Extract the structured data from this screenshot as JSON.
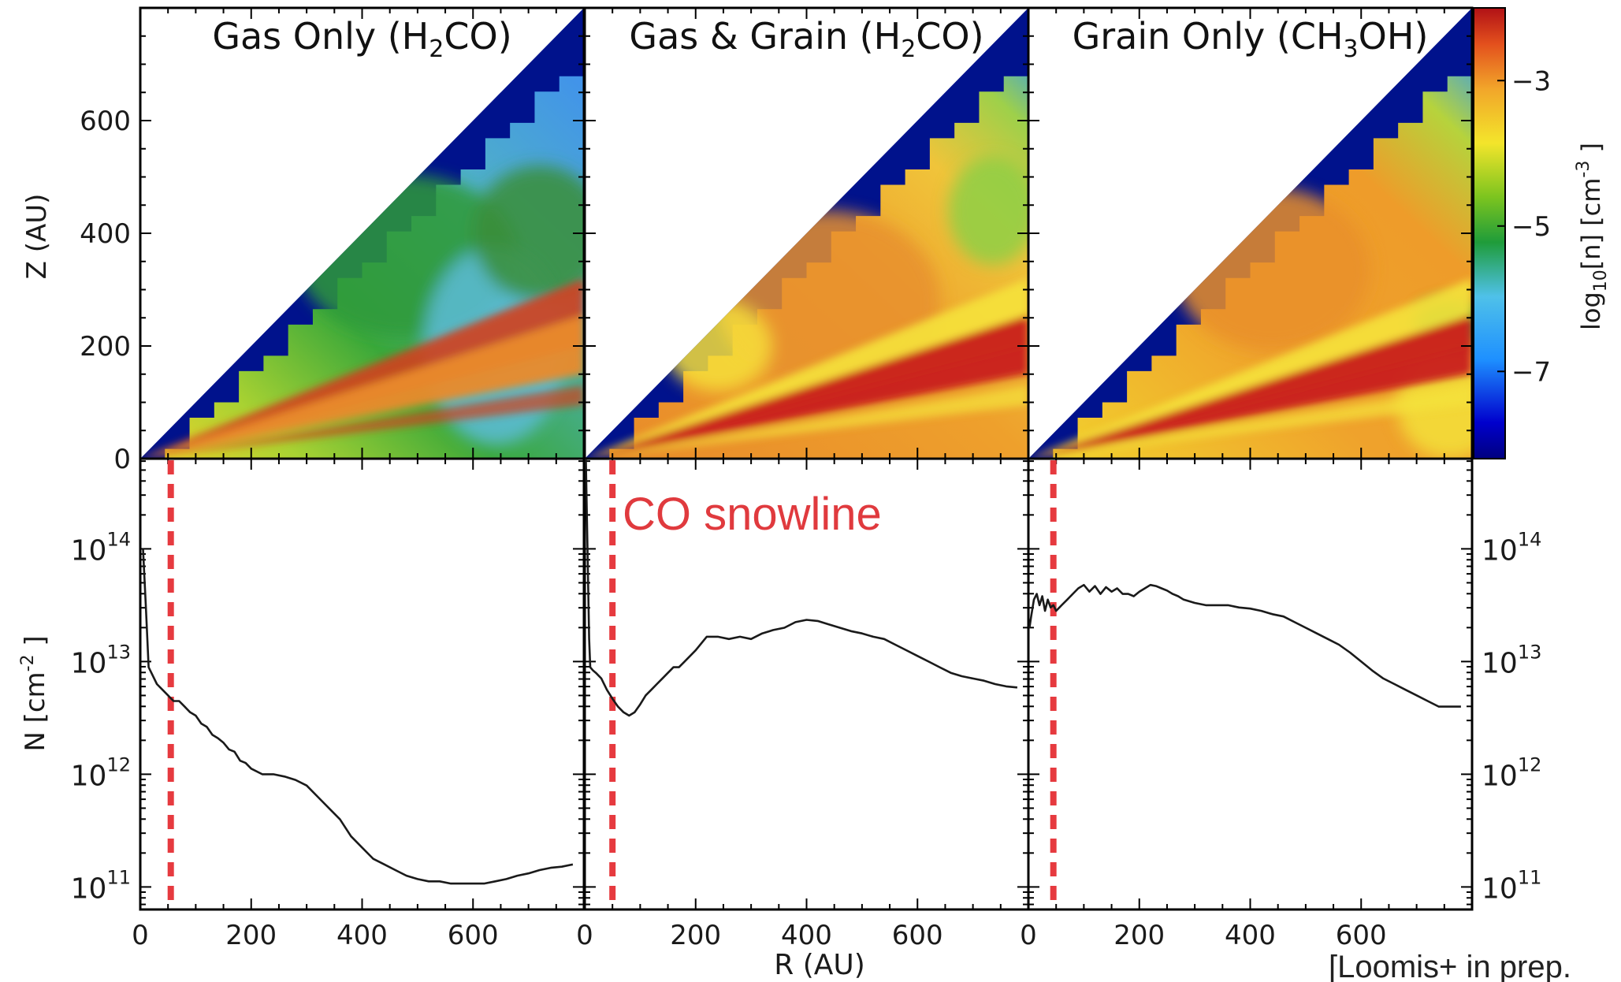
{
  "chart_data": [
    {
      "type": "heatmap",
      "colormap": "jet",
      "colorbar": {
        "label": "log10[n] [cm^-3]",
        "ticks": [
          "−3",
          "−5",
          "−7"
        ],
        "range": [
          -8.2,
          -2.0
        ]
      },
      "xlim": [
        0,
        800
      ],
      "ylim": [
        0,
        800
      ],
      "ylabel": "Z (AU)",
      "yticks": [
        "0",
        "200",
        "400",
        "600"
      ],
      "panels": [
        {
          "title": "Gas Only (H2CO)",
          "title_parts": [
            "Gas Only (H",
            "2",
            "CO)"
          ],
          "style": "gas"
        },
        {
          "title": "Gas & Grain (H2CO)",
          "title_parts": [
            "Gas & Grain (H",
            "2",
            "CO)"
          ],
          "style": "gasgrain"
        },
        {
          "title": "Grain Only (CH3OH)",
          "title_parts": [
            "Grain Only (CH",
            "3",
            "OH)"
          ],
          "style": "grain"
        }
      ]
    },
    {
      "type": "line",
      "xlabel": "R (AU)",
      "ylabel": "N [cm^-2 ]",
      "yscale": "log",
      "ylim_log10": [
        10.8,
        14.8
      ],
      "xlim": [
        0,
        800
      ],
      "xticks": [
        "0",
        "200",
        "400",
        "600"
      ],
      "ytick_exponents": [
        "14",
        "13",
        "12",
        "11"
      ],
      "snowline_r": [
        55,
        50,
        45
      ],
      "annotation": "CO snowline",
      "series": [
        {
          "x": [
            5,
            10,
            15,
            20,
            30,
            40,
            50,
            60,
            70,
            80,
            90,
            100,
            110,
            120,
            130,
            140,
            150,
            160,
            170,
            180,
            190,
            200,
            220,
            240,
            260,
            280,
            300,
            320,
            340,
            360,
            380,
            400,
            420,
            440,
            460,
            480,
            500,
            520,
            540,
            560,
            580,
            600,
            620,
            640,
            660,
            680,
            700,
            720,
            740,
            760,
            780
          ],
          "y": [
            14.0,
            13.5,
            12.95,
            12.9,
            12.8,
            12.75,
            12.7,
            12.65,
            12.65,
            12.6,
            12.55,
            12.52,
            12.45,
            12.42,
            12.35,
            12.32,
            12.28,
            12.22,
            12.2,
            12.12,
            12.1,
            12.05,
            12.0,
            12.0,
            11.98,
            11.95,
            11.9,
            11.8,
            11.7,
            11.6,
            11.45,
            11.35,
            11.25,
            11.2,
            11.15,
            11.1,
            11.07,
            11.05,
            11.05,
            11.03,
            11.03,
            11.03,
            11.03,
            11.05,
            11.07,
            11.1,
            11.12,
            11.15,
            11.17,
            11.18,
            11.2
          ]
        },
        {
          "x": [
            2,
            5,
            8,
            10,
            15,
            20,
            30,
            40,
            50,
            60,
            70,
            80,
            90,
            100,
            110,
            120,
            130,
            140,
            150,
            160,
            170,
            180,
            190,
            200,
            220,
            240,
            260,
            280,
            300,
            320,
            340,
            360,
            380,
            400,
            420,
            440,
            460,
            480,
            500,
            520,
            540,
            560,
            580,
            600,
            620,
            640,
            660,
            680,
            700,
            720,
            740,
            760,
            780
          ],
          "y": [
            14.8,
            14.0,
            13.2,
            12.95,
            12.92,
            12.9,
            12.85,
            12.75,
            12.67,
            12.6,
            12.55,
            12.52,
            12.55,
            12.62,
            12.7,
            12.75,
            12.8,
            12.85,
            12.9,
            12.95,
            12.95,
            13.0,
            13.05,
            13.1,
            13.22,
            13.22,
            13.2,
            13.22,
            13.2,
            13.25,
            13.28,
            13.3,
            13.35,
            13.37,
            13.36,
            13.33,
            13.3,
            13.27,
            13.25,
            13.22,
            13.2,
            13.15,
            13.1,
            13.05,
            13.0,
            12.95,
            12.9,
            12.87,
            12.85,
            12.83,
            12.8,
            12.78,
            12.77
          ]
        },
        {
          "x": [
            2,
            5,
            10,
            15,
            20,
            25,
            30,
            35,
            40,
            45,
            50,
            60,
            70,
            80,
            90,
            100,
            110,
            120,
            130,
            140,
            150,
            160,
            170,
            180,
            190,
            200,
            210,
            220,
            230,
            240,
            250,
            260,
            270,
            280,
            300,
            320,
            340,
            360,
            380,
            400,
            420,
            440,
            460,
            480,
            500,
            520,
            540,
            560,
            580,
            600,
            620,
            640,
            660,
            680,
            700,
            720,
            740,
            760,
            780
          ],
          "y": [
            13.3,
            13.4,
            13.55,
            13.6,
            13.5,
            13.58,
            13.45,
            13.55,
            13.48,
            13.5,
            13.45,
            13.5,
            13.55,
            13.6,
            13.65,
            13.68,
            13.62,
            13.67,
            13.6,
            13.66,
            13.62,
            13.65,
            13.6,
            13.6,
            13.58,
            13.62,
            13.65,
            13.68,
            13.67,
            13.65,
            13.63,
            13.6,
            13.58,
            13.55,
            13.52,
            13.5,
            13.5,
            13.5,
            13.48,
            13.47,
            13.45,
            13.42,
            13.4,
            13.35,
            13.3,
            13.25,
            13.2,
            13.15,
            13.08,
            13.0,
            12.92,
            12.85,
            12.8,
            12.75,
            12.7,
            12.65,
            12.6,
            12.6,
            12.6
          ]
        }
      ]
    }
  ],
  "footer": {
    "credit": "[Loomis+ in prep."
  }
}
